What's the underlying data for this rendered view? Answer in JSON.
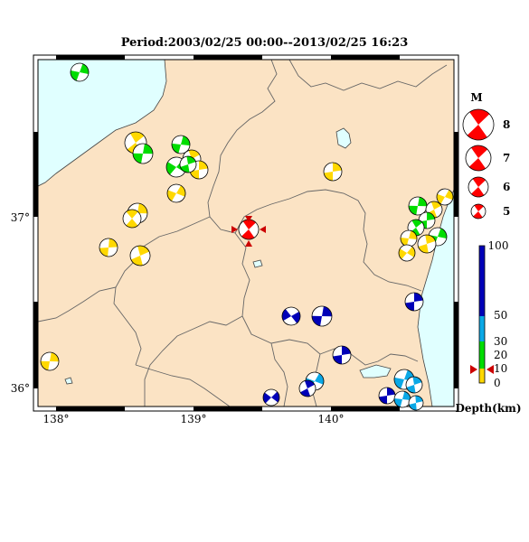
{
  "title": "Period:2003/02/25 00:00--2013/02/25 16:23",
  "axes": {
    "x_ticks": [
      "138°",
      "139°",
      "140°"
    ],
    "y_ticks": [
      "37°",
      "36°"
    ]
  },
  "legend": {
    "magnitude_heading": "M",
    "magnitudes": [
      "8",
      "7",
      "6",
      "5"
    ],
    "depth_label": "Depth(km)",
    "depth_ticks": [
      "100",
      "50",
      "30",
      "20",
      "10",
      "0"
    ]
  },
  "colors": {
    "land": "#fbe3c4",
    "sea": "#e0ffff",
    "boundary": "#666666",
    "yellow": "#ffd800",
    "green": "#00dd00",
    "cyan": "#0aa8e6",
    "blue": "#0000b8",
    "red": "#ff0000",
    "white": "#ffffff"
  }
}
